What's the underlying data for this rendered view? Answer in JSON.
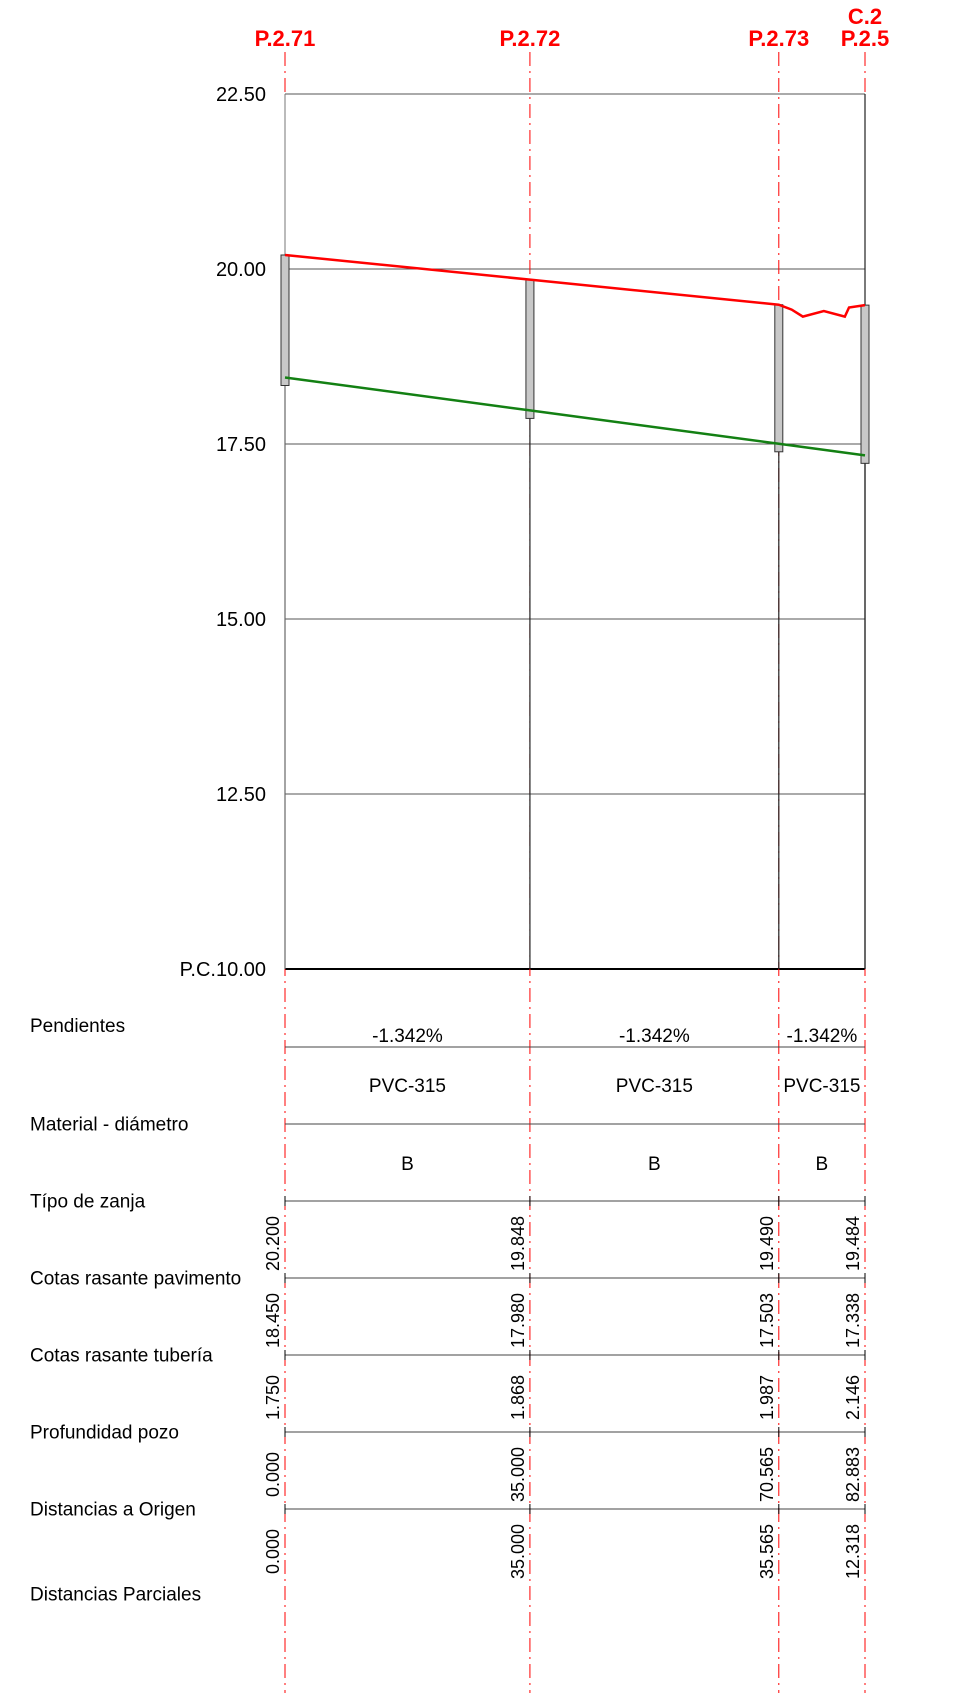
{
  "wells": [
    {
      "id": "P.2.71",
      "label_top": "",
      "dist": 0.0,
      "partial": "0.000",
      "dist_label": "0.000",
      "pavement": 20.2,
      "pavement_label": "20.200",
      "pipe": 18.45,
      "pipe_label": "18.450",
      "depth_label": "1.750"
    },
    {
      "id": "P.2.72",
      "label_top": "",
      "dist": 35.0,
      "partial": "35.000",
      "dist_label": "35.000",
      "pavement": 19.848,
      "pavement_label": "19.848",
      "pipe": 17.98,
      "pipe_label": "17.980",
      "depth_label": "1.868"
    },
    {
      "id": "P.2.73",
      "label_top": "",
      "dist": 70.565,
      "partial": "35.565",
      "dist_label": "70.565",
      "pavement": 19.49,
      "pavement_label": "19.490",
      "pipe": 17.503,
      "pipe_label": "17.503",
      "depth_label": "1.987"
    },
    {
      "id": "P.2.5",
      "label_top": "C.2",
      "dist": 82.883,
      "partial": "12.318",
      "dist_label": "82.883",
      "pavement": 19.484,
      "pavement_label": "19.484",
      "pipe": 17.338,
      "pipe_label": "17.338",
      "depth_label": "2.146"
    }
  ],
  "elevation_axis": {
    "ticks": [
      "22.50",
      "20.00",
      "17.50",
      "15.00",
      "12.50"
    ],
    "tick_values": [
      22.5,
      20.0,
      17.5,
      15.0,
      12.5
    ],
    "datum_label": "P.C.10.00",
    "datum_value": 10.0,
    "max": 22.5
  },
  "pavement_extra": [
    {
      "dist": 72.4,
      "elev": 19.42
    },
    {
      "dist": 74.0,
      "elev": 19.32
    },
    {
      "dist": 77.0,
      "elev": 19.4
    },
    {
      "dist": 80.0,
      "elev": 19.32
    },
    {
      "dist": 80.6,
      "elev": 19.45
    }
  ],
  "segments": [
    {
      "slope": "-1.342%",
      "material": "PVC-315",
      "trench": "B"
    },
    {
      "slope": "-1.342%",
      "material": "PVC-315",
      "trench": "B"
    },
    {
      "slope": "-1.342%",
      "material": "PVC-315",
      "trench": "B"
    }
  ],
  "row_labels": {
    "slopes": "Pendientes",
    "material": "Material - diámetro",
    "trench": "Típo de zanja",
    "pavement": "Cotas rasante pavimento",
    "pipe": "Cotas rasante tubería",
    "depth": "Profundidad pozo",
    "dist_origin": "Distancias a Origen",
    "dist_partial": "Distancias Parciales"
  },
  "colors": {
    "pavement_line": "#ff0000",
    "pipe_line": "#138013",
    "well_axis": "#ff0000",
    "grid": "#000000",
    "well_fill": "#c8c8c8"
  }
}
